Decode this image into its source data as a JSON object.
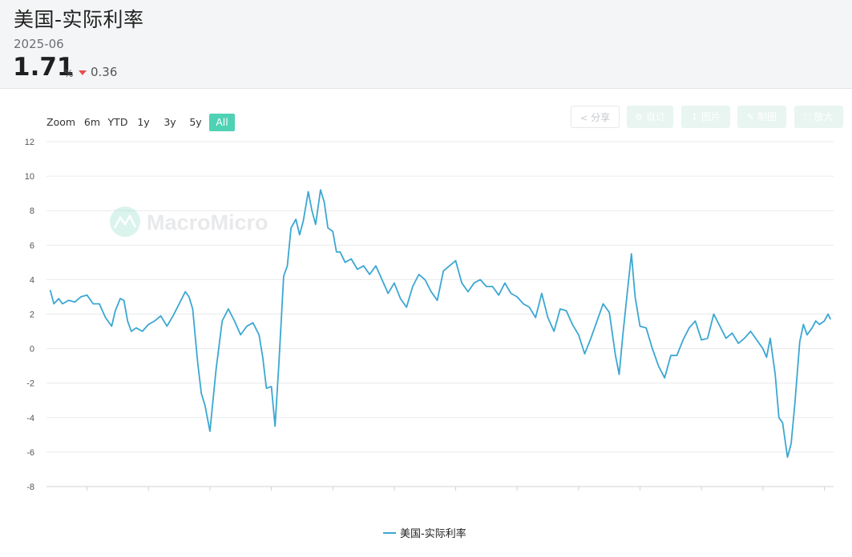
{
  "header": {
    "title": "美国-实际利率",
    "date": "2025-06",
    "value": "1.71",
    "unit": "%",
    "change": "0.36",
    "change_color": "#e84d4d"
  },
  "zoom": {
    "label": "Zoom",
    "ranges": [
      "6m",
      "YTD",
      "1y",
      "3y",
      "5y",
      "All"
    ],
    "active": "All",
    "active_color": "#4fd1b4"
  },
  "toolbar": {
    "share": "分享",
    "subscribe": "自订",
    "image": "图片",
    "draw": "制图",
    "expand": "放大",
    "icons": [
      "share-icon",
      "gear-icon",
      "download-icon",
      "pencil-icon",
      "expand-icon"
    ]
  },
  "watermark": "MacroMicro",
  "chart_data": {
    "type": "line",
    "title": "",
    "xlabel": "",
    "ylabel": "",
    "xlim": [
      1961.7,
      2025.75
    ],
    "ylim": [
      -8,
      12
    ],
    "y_ticks": [
      12,
      10,
      8,
      6,
      4,
      2,
      0,
      -2,
      -4,
      -6,
      -8
    ],
    "x_ticks": [
      1965,
      1970,
      1975,
      1980,
      1985,
      1990,
      1995,
      2000,
      2005,
      2010,
      2015,
      2020,
      2025
    ],
    "grid": true,
    "legend_position": "bottom",
    "series": [
      {
        "name": "美国-实际利率",
        "color": "#3ba7d2",
        "x": [
          1962.0,
          1962.3,
          1962.7,
          1963.0,
          1963.5,
          1964.0,
          1964.5,
          1965.0,
          1965.5,
          1966.0,
          1966.5,
          1967.0,
          1967.3,
          1967.7,
          1968.0,
          1968.3,
          1968.6,
          1969.0,
          1969.5,
          1970.0,
          1970.5,
          1971.0,
          1971.5,
          1972.0,
          1972.5,
          1973.0,
          1973.3,
          1973.6,
          1974.0,
          1974.3,
          1974.6,
          1975.0,
          1975.5,
          1976.0,
          1976.5,
          1977.0,
          1977.5,
          1978.0,
          1978.5,
          1979.0,
          1979.3,
          1979.6,
          1980.0,
          1980.3,
          1980.6,
          1981.0,
          1981.3,
          1981.6,
          1982.0,
          1982.3,
          1982.6,
          1983.0,
          1983.3,
          1983.6,
          1984.0,
          1984.3,
          1984.6,
          1985.0,
          1985.3,
          1985.6,
          1986.0,
          1986.5,
          1987.0,
          1987.5,
          1988.0,
          1988.5,
          1989.0,
          1989.5,
          1990.0,
          1990.5,
          1991.0,
          1991.5,
          1992.0,
          1992.5,
          1993.0,
          1993.5,
          1994.0,
          1994.5,
          1995.0,
          1995.5,
          1996.0,
          1996.5,
          1997.0,
          1997.5,
          1998.0,
          1998.5,
          1999.0,
          1999.5,
          2000.0,
          2000.5,
          2001.0,
          2001.5,
          2002.0,
          2002.5,
          2003.0,
          2003.5,
          2004.0,
          2004.5,
          2005.0,
          2005.5,
          2006.0,
          2006.5,
          2007.0,
          2007.5,
          2008.0,
          2008.3,
          2008.6,
          2009.0,
          2009.3,
          2009.6,
          2010.0,
          2010.5,
          2011.0,
          2011.5,
          2012.0,
          2012.5,
          2013.0,
          2013.5,
          2014.0,
          2014.5,
          2015.0,
          2015.5,
          2016.0,
          2016.5,
          2017.0,
          2017.5,
          2018.0,
          2018.5,
          2019.0,
          2019.5,
          2020.0,
          2020.3,
          2020.6,
          2021.0,
          2021.3,
          2021.6,
          2022.0,
          2022.3,
          2022.6,
          2023.0,
          2023.3,
          2023.6,
          2024.0,
          2024.3,
          2024.6,
          2025.0,
          2025.3,
          2025.5
        ],
        "y": [
          3.4,
          2.6,
          2.9,
          2.6,
          2.8,
          2.7,
          3.0,
          3.1,
          2.6,
          2.6,
          1.8,
          1.3,
          2.2,
          2.9,
          2.8,
          1.6,
          1.0,
          1.2,
          1.0,
          1.4,
          1.6,
          1.9,
          1.3,
          1.9,
          2.6,
          3.3,
          3.0,
          2.3,
          -0.8,
          -2.6,
          -3.3,
          -4.8,
          -1.2,
          1.6,
          2.3,
          1.6,
          0.8,
          1.3,
          1.5,
          0.8,
          -0.5,
          -2.3,
          -2.2,
          -4.5,
          -1.0,
          4.2,
          4.8,
          7.0,
          7.5,
          6.6,
          7.4,
          9.1,
          8.0,
          7.2,
          9.2,
          8.5,
          7.0,
          6.8,
          5.6,
          5.6,
          5.0,
          5.2,
          4.6,
          4.8,
          4.3,
          4.8,
          4.0,
          3.2,
          3.8,
          2.9,
          2.4,
          3.6,
          4.3,
          4.0,
          3.3,
          2.8,
          4.5,
          4.8,
          5.1,
          3.8,
          3.3,
          3.8,
          4.0,
          3.6,
          3.6,
          3.1,
          3.8,
          3.2,
          3.0,
          2.6,
          2.4,
          1.8,
          3.2,
          1.8,
          1.0,
          2.3,
          2.2,
          1.4,
          0.8,
          -0.3,
          0.6,
          1.6,
          2.6,
          2.1,
          -0.4,
          -1.5,
          0.8,
          3.5,
          5.5,
          3.0,
          1.3,
          1.2,
          0.0,
          -1.0,
          -1.7,
          -0.4,
          -0.4,
          0.5,
          1.2,
          1.6,
          0.5,
          0.6,
          2.0,
          1.3,
          0.6,
          0.9,
          0.3,
          0.6,
          1.0,
          0.5,
          0.0,
          -0.5,
          0.6,
          -1.5,
          -4.0,
          -4.3,
          -6.3,
          -5.5,
          -3.2,
          0.4,
          1.4,
          0.8,
          1.2,
          1.6,
          1.4,
          1.6,
          2.0,
          1.7
        ]
      }
    ]
  }
}
